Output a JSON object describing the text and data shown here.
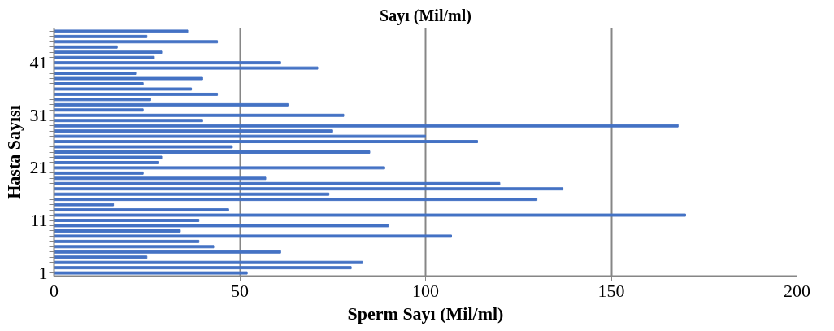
{
  "chart_data": {
    "type": "bar",
    "orientation": "horizontal",
    "title": "Sayı (Mil/ml)",
    "xlabel": "Sperm Sayı (Mil/ml)",
    "ylabel": "Hasta Sayısı",
    "categories": [
      null,
      null,
      null,
      null,
      null,
      null,
      "41",
      null,
      null,
      null,
      null,
      null,
      null,
      null,
      null,
      null,
      "31",
      null,
      null,
      null,
      null,
      null,
      null,
      null,
      null,
      null,
      "21",
      null,
      null,
      null,
      null,
      null,
      null,
      null,
      null,
      null,
      "11",
      null,
      null,
      null,
      null,
      null,
      null,
      null,
      null,
      null,
      "1"
    ],
    "values": [
      36,
      25,
      44,
      17,
      29,
      27,
      61,
      71,
      22,
      40,
      24,
      37,
      44,
      26,
      63,
      24,
      78,
      40,
      168,
      75,
      100,
      114,
      48,
      85,
      29,
      28,
      89,
      24,
      57,
      120,
      137,
      74,
      130,
      16,
      47,
      170,
      39,
      90,
      34,
      107,
      39,
      43,
      61,
      25,
      83,
      80,
      52
    ],
    "color": "#4472c4",
    "xlim": [
      0,
      200
    ],
    "xticks": [
      0,
      50,
      100,
      150,
      200
    ],
    "grid": "x"
  }
}
